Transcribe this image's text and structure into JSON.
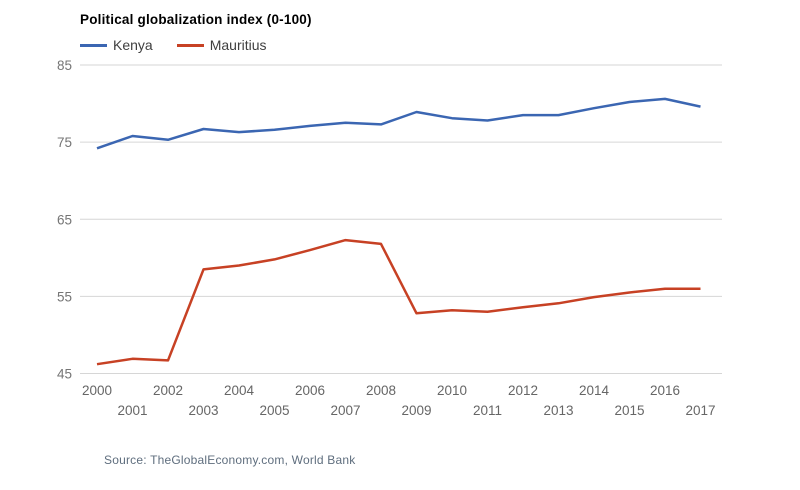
{
  "chart": {
    "title": "Political globalization index (0-100)",
    "source": "Source: TheGlobalEconomy.com, World Bank",
    "series_labels": [
      "Kenya",
      "Mauritius"
    ]
  },
  "colors": {
    "kenya": "#3b66b2",
    "mauritius": "#c74124",
    "gridline": "#d6d6d6",
    "y_tick_label": "#757575",
    "x_tick_label": "#666666",
    "title_text": "#000000",
    "source_text": "#5f6e7e"
  },
  "chart_data": {
    "type": "line",
    "title": "Political globalization index (0-100)",
    "xlabel": "",
    "ylabel": "",
    "x": [
      2000,
      2001,
      2002,
      2003,
      2004,
      2005,
      2006,
      2007,
      2008,
      2009,
      2010,
      2011,
      2012,
      2013,
      2014,
      2015,
      2016,
      2017
    ],
    "series": [
      {
        "name": "Kenya",
        "color_key": "kenya",
        "values": [
          74.2,
          75.8,
          75.3,
          76.7,
          76.3,
          76.6,
          77.1,
          77.5,
          77.3,
          78.9,
          78.1,
          77.8,
          78.5,
          78.5,
          79.4,
          80.2,
          80.6,
          79.6
        ]
      },
      {
        "name": "Mauritius",
        "color_key": "mauritius",
        "values": [
          46.2,
          46.9,
          46.7,
          58.5,
          59.0,
          59.8,
          61.0,
          62.3,
          61.8,
          52.8,
          53.2,
          53.0,
          53.6,
          54.1,
          54.9,
          55.5,
          56.0,
          56.0
        ]
      }
    ],
    "yticks": [
      85,
      75,
      65,
      55,
      45
    ],
    "ylim": [
      45,
      85
    ],
    "grid": "horizontal-only",
    "legend_position": "top-left"
  }
}
